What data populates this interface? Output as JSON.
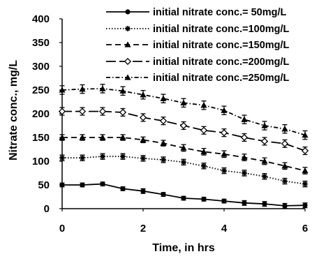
{
  "chart_data": {
    "type": "line",
    "title": "",
    "xlabel": "Time, in hrs",
    "ylabel": "Nitrate conc., mg/L",
    "xlim": [
      0,
      6
    ],
    "ylim": [
      0,
      400
    ],
    "xticks": [
      "0",
      "2",
      "4",
      "6"
    ],
    "yticks": [
      "0",
      "50",
      "100",
      "150",
      "200",
      "250",
      "300",
      "350",
      "400"
    ],
    "grid": false,
    "legend_position": "top-right",
    "x": [
      0,
      0.5,
      1,
      1.5,
      2,
      2.5,
      3,
      3.5,
      4,
      4.5,
      5,
      5.5,
      6
    ],
    "series": [
      {
        "name": "initial nitrate conc.= 50mg/L",
        "line_style": "solid",
        "marker": "circle",
        "values": [
          50,
          50,
          52,
          42,
          37,
          30,
          22,
          20,
          16,
          12,
          10,
          6,
          7
        ],
        "error": [
          4,
          4,
          4,
          4,
          5,
          4,
          4,
          4,
          4,
          5,
          5,
          5,
          5
        ]
      },
      {
        "name": "initial nitrate conc.=100mg/L",
        "line_style": "dotted",
        "marker": "asterisk",
        "values": [
          107,
          107,
          110,
          110,
          106,
          103,
          98,
          90,
          80,
          75,
          68,
          58,
          52
        ],
        "error": [
          6,
          6,
          6,
          6,
          6,
          6,
          6,
          6,
          6,
          6,
          6,
          6,
          6
        ]
      },
      {
        "name": "initial nitrate conc.=150mg/L",
        "line_style": "dashed",
        "marker": "triangle",
        "values": [
          150,
          150,
          150,
          150,
          145,
          138,
          128,
          120,
          115,
          108,
          100,
          90,
          80
        ],
        "error": [
          6,
          6,
          6,
          6,
          6,
          6,
          7,
          7,
          7,
          7,
          7,
          7,
          7
        ]
      },
      {
        "name": "initial nitrate conc.=200mg/L",
        "line_style": "long-dash",
        "marker": "diamond",
        "values": [
          205,
          205,
          205,
          203,
          192,
          185,
          175,
          165,
          160,
          150,
          142,
          137,
          122
        ],
        "error": [
          8,
          8,
          8,
          8,
          8,
          8,
          8,
          8,
          8,
          8,
          8,
          8,
          8
        ]
      },
      {
        "name": "initial nitrate conc.=250mg/L",
        "line_style": "dash-dot",
        "marker": "triangle",
        "values": [
          250,
          252,
          253,
          248,
          240,
          232,
          223,
          218,
          207,
          188,
          175,
          168,
          155
        ],
        "error": [
          9,
          9,
          9,
          9,
          9,
          9,
          9,
          9,
          9,
          9,
          9,
          9,
          9
        ]
      }
    ]
  }
}
